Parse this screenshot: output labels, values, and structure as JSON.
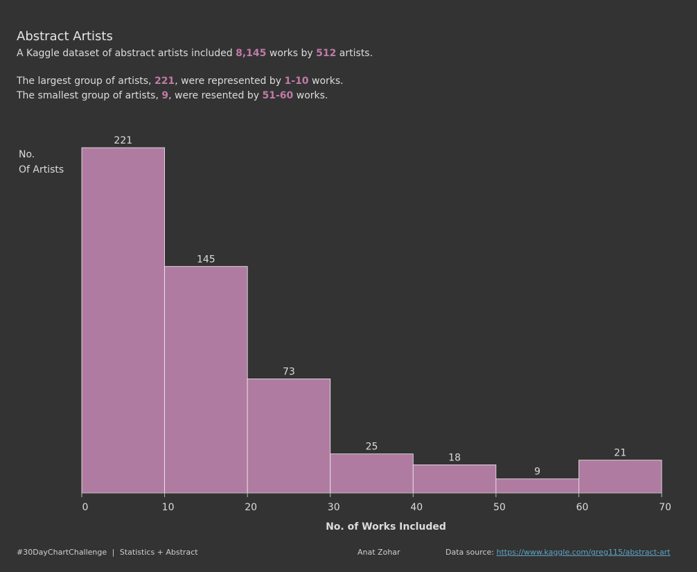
{
  "header": {
    "title": "Abstract Artists",
    "line1": {
      "pre": "A Kaggle dataset of abstract artists included ",
      "works": "8,145",
      "mid": " works by ",
      "artists": "512",
      "post": " artists."
    },
    "line2": {
      "pre": "The largest group of artists, ",
      "count": "221",
      "mid": ", were represented by ",
      "range": "1-10",
      "post": " works."
    },
    "line3": {
      "pre": "The smallest group of artists, ",
      "count": "9",
      "mid": ", were resented by ",
      "range": "51-60",
      "post": " works."
    }
  },
  "chart_data": {
    "type": "bar",
    "subtype": "histogram",
    "bins": [
      [
        0,
        10
      ],
      [
        10,
        20
      ],
      [
        20,
        30
      ],
      [
        30,
        40
      ],
      [
        40,
        50
      ],
      [
        50,
        60
      ],
      [
        60,
        70
      ]
    ],
    "values": [
      221,
      145,
      73,
      25,
      18,
      9,
      21
    ],
    "data_labels": [
      "221",
      "145",
      "73",
      "25",
      "18",
      "9",
      "21"
    ],
    "xlabel": "No. of Works Included",
    "ylabel": "No.\nOf Artists",
    "ylabel_lines": [
      "No.",
      "Of Artists"
    ],
    "xticks": [
      0,
      10,
      20,
      30,
      40,
      50,
      60,
      70
    ],
    "xlim": [
      0,
      70
    ],
    "ylim": [
      0,
      221
    ],
    "grid": false,
    "bar_color": "#b07ba1",
    "bar_edge_color": "#f0f0f0"
  },
  "colors": {
    "background": "#333333",
    "highlight": "#c07aa8",
    "text": "#dcdcdc",
    "link": "#5ea3c6"
  },
  "footer": {
    "hashtag": "#30DayChartChallenge",
    "separator": "|",
    "topic": "Statistics + Abstract",
    "author": "Anat Zohar",
    "source_label": "Data source: ",
    "source_link": "https://www.kaggle.com/greg115/abstract-art"
  }
}
